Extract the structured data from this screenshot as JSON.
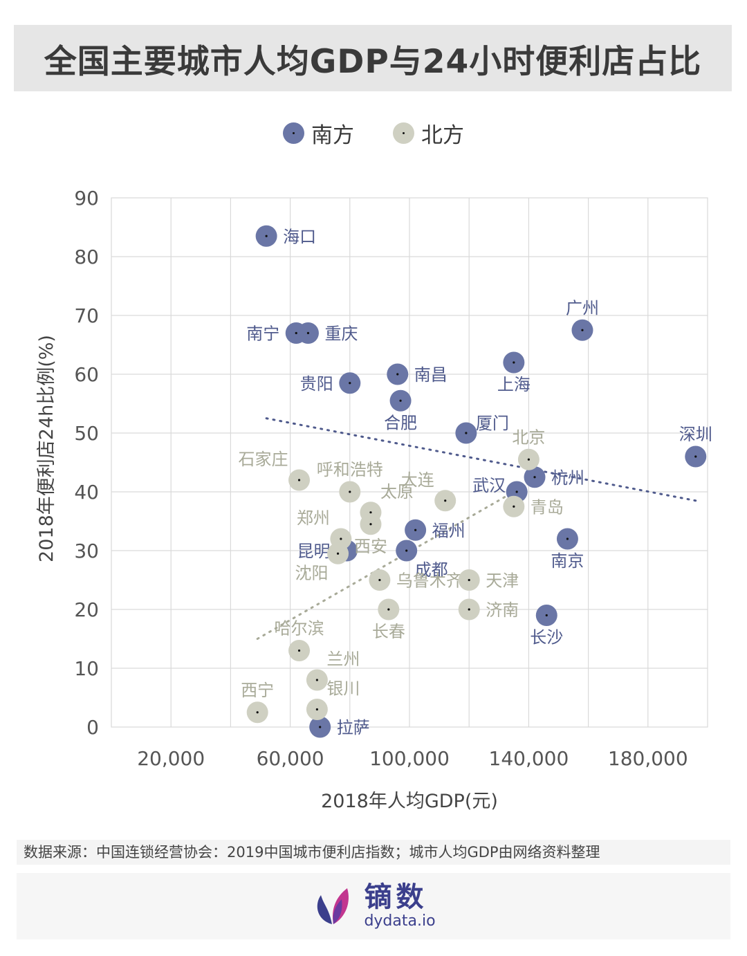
{
  "title": "全国主要城市人均GDP与24小时便利店占比",
  "legend": {
    "south_label": "南方",
    "north_label": "北方"
  },
  "colors": {
    "south": "#6a76a6",
    "north": "#cfd0c2",
    "south_text": "#4f5a8c",
    "north_text": "#a8aa98",
    "grid": "#d9d9d9"
  },
  "chart_data": {
    "type": "scatter",
    "title": "全国主要城市人均GDP与24小时便利店占比",
    "xlabel": "2018年人均GDP(元)",
    "ylabel": "2018年便利店24h比例(%)",
    "xlim": [
      0,
      200000
    ],
    "ylim": [
      0,
      90
    ],
    "xticks": [
      20000,
      60000,
      100000,
      140000,
      180000
    ],
    "xtick_labels": [
      "20,000",
      "60,000",
      "100,000",
      "140,000",
      "180,000"
    ],
    "yticks": [
      0,
      10,
      20,
      30,
      40,
      50,
      60,
      70,
      80,
      90
    ],
    "ytick_labels": [
      "0",
      "10",
      "20",
      "30",
      "40",
      "50",
      "60",
      "70",
      "80",
      "90"
    ],
    "grid": true,
    "series": [
      {
        "name": "南方",
        "points": [
          {
            "city": "海口",
            "x": 52000,
            "y": 83.5,
            "anchor": "right"
          },
          {
            "city": "南宁",
            "x": 62000,
            "y": 67,
            "anchor": "left"
          },
          {
            "city": "重庆",
            "x": 66000,
            "y": 67,
            "anchor": "right"
          },
          {
            "city": "广州",
            "x": 158000,
            "y": 67.5,
            "anchor": "above"
          },
          {
            "city": "南昌",
            "x": 96000,
            "y": 60,
            "anchor": "right"
          },
          {
            "city": "上海",
            "x": 135000,
            "y": 62,
            "anchor": "below"
          },
          {
            "city": "贵阳",
            "x": 80000,
            "y": 58.5,
            "anchor": "left"
          },
          {
            "city": "合肥",
            "x": 97000,
            "y": 55.5,
            "anchor": "below"
          },
          {
            "city": "厦门",
            "x": 119000,
            "y": 50,
            "anchor": "right-up"
          },
          {
            "city": "深圳",
            "x": 196000,
            "y": 46,
            "anchor": "above"
          },
          {
            "city": "杭州",
            "x": 142000,
            "y": 42.5,
            "anchor": "right"
          },
          {
            "city": "武汉",
            "x": 136000,
            "y": 40,
            "anchor": "left-up"
          },
          {
            "city": "福州",
            "x": 102000,
            "y": 33.5,
            "anchor": "right"
          },
          {
            "city": "南京",
            "x": 153000,
            "y": 32,
            "anchor": "below"
          },
          {
            "city": "昆明",
            "x": 79000,
            "y": 30,
            "anchor": "left"
          },
          {
            "city": "成都",
            "x": 99000,
            "y": 30,
            "anchor": "below-right"
          },
          {
            "city": "长沙",
            "x": 146000,
            "y": 19,
            "anchor": "below"
          },
          {
            "city": "拉萨",
            "x": 70000,
            "y": 0,
            "anchor": "right"
          }
        ],
        "trendline": {
          "x": [
            52000,
            196000
          ],
          "y": [
            52.5,
            38.5
          ]
        }
      },
      {
        "name": "北方",
        "points": [
          {
            "city": "北京",
            "x": 140000,
            "y": 45.5,
            "anchor": "above"
          },
          {
            "city": "石家庄",
            "x": 63000,
            "y": 42,
            "anchor": "above-left"
          },
          {
            "city": "呼和浩特",
            "x": 80000,
            "y": 40,
            "anchor": "above"
          },
          {
            "city": "大连",
            "x": 112000,
            "y": 38.5,
            "anchor": "above-left"
          },
          {
            "city": "太原",
            "x": 87000,
            "y": 36.5,
            "anchor": "above-right"
          },
          {
            "city": "青岛",
            "x": 135000,
            "y": 37.5,
            "anchor": "right"
          },
          {
            "city": "西安",
            "x": 87000,
            "y": 34.5,
            "anchor": "below"
          },
          {
            "city": "郑州",
            "x": 77000,
            "y": 32,
            "anchor": "above-left"
          },
          {
            "city": "沈阳",
            "x": 76000,
            "y": 29.5,
            "anchor": "below-left"
          },
          {
            "city": "乌鲁木齐",
            "x": 90000,
            "y": 25,
            "anchor": "right"
          },
          {
            "city": "天津",
            "x": 120000,
            "y": 25,
            "anchor": "right"
          },
          {
            "city": "济南",
            "x": 120000,
            "y": 20,
            "anchor": "right"
          },
          {
            "city": "长春",
            "x": 93000,
            "y": 20,
            "anchor": "below"
          },
          {
            "city": "哈尔滨",
            "x": 63000,
            "y": 13,
            "anchor": "above"
          },
          {
            "city": "兰州",
            "x": 69000,
            "y": 8,
            "anchor": "above-right"
          },
          {
            "city": "银川",
            "x": 69000,
            "y": 3,
            "anchor": "above-right"
          },
          {
            "city": "西宁",
            "x": 49000,
            "y": 2.5,
            "anchor": "above"
          }
        ],
        "trendline": {
          "x": [
            49000,
            135000
          ],
          "y": [
            15,
            40
          ]
        }
      }
    ]
  },
  "footer": {
    "source": "数据来源：中国连锁经营协会：2019中国城市便利店指数；城市人均GDP由网络资料整理",
    "brand_cn": "镝数",
    "brand_en": "dydata.io"
  }
}
